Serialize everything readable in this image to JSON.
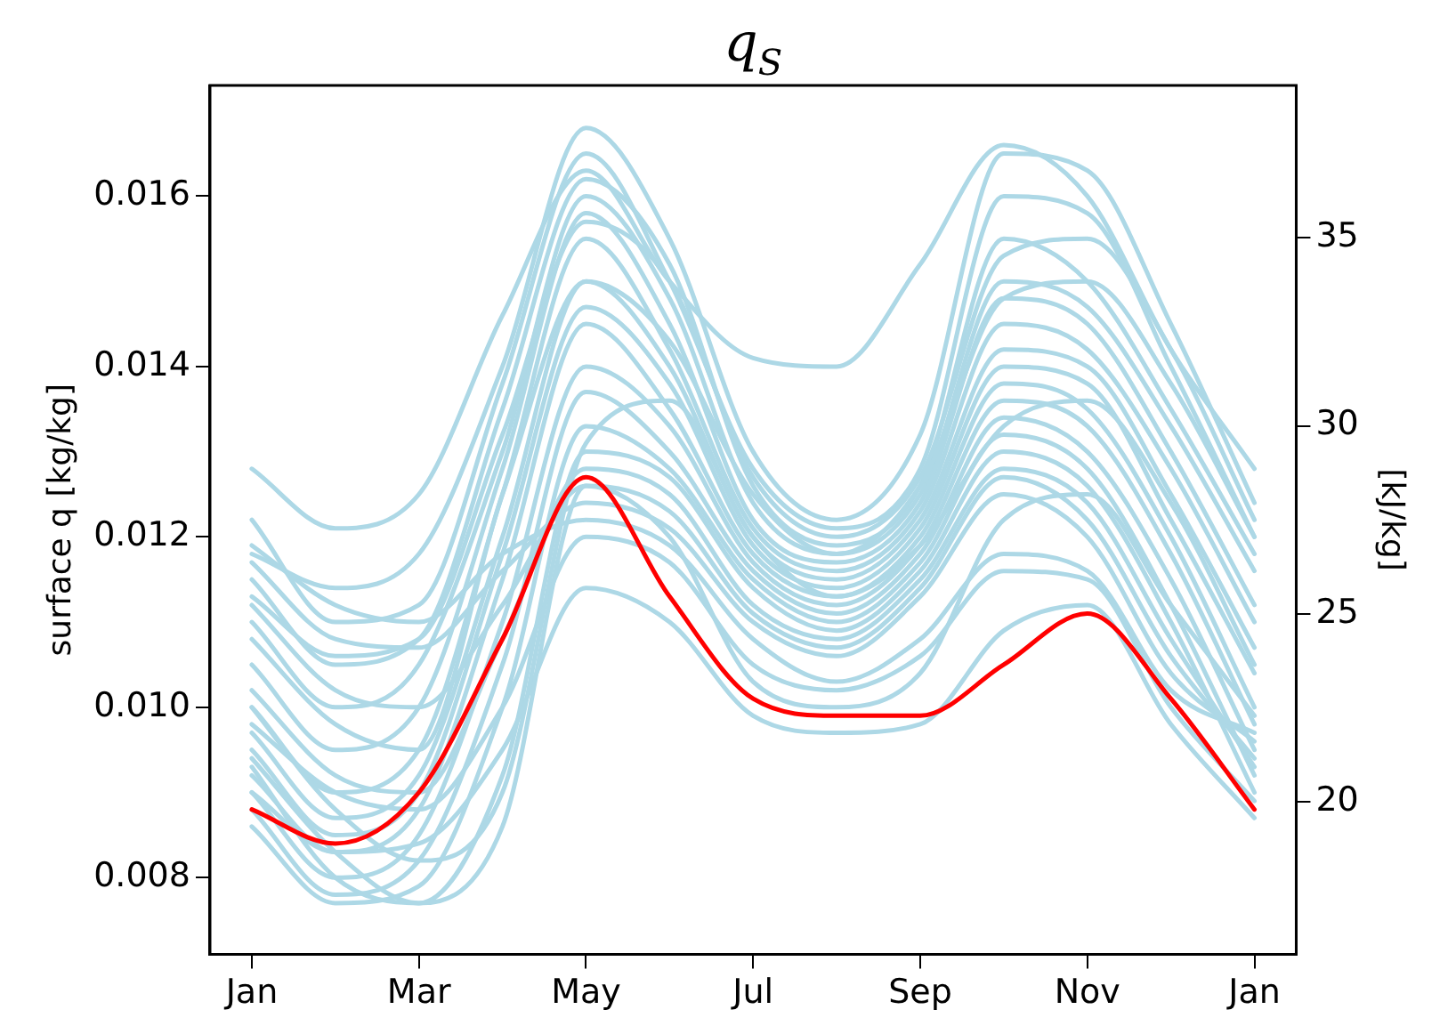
{
  "chart_data": {
    "type": "line",
    "title": "q$_{S}$",
    "ylabel": "surface q [kg/kg]",
    "y2label": "[kJ/kg]",
    "categories": [
      "Jan",
      null,
      "Mar",
      null,
      "May",
      null,
      "Jul",
      null,
      "Sep",
      null,
      "Nov",
      null,
      "Jan"
    ],
    "ylim": [
      0.0071,
      0.0173
    ],
    "yticks": [
      0.008,
      {
        "value": 0.01,
        "label": "0.010"
      },
      0.012,
      0.014,
      0.016
    ],
    "y2lim": [
      15.95,
      39.05
    ],
    "y2ticks": [
      20,
      25,
      30,
      35
    ],
    "grid": false,
    "legend": false,
    "marker": "none",
    "line_style": "solid",
    "series": [
      {
        "color": "#add8e6",
        "values": [
          0.0128,
          0.0121,
          0.0125,
          0.0146,
          0.0163,
          0.015,
          0.0141,
          0.014,
          0.0152,
          0.0166,
          0.016,
          0.0142,
          0.0128
        ]
      },
      {
        "color": "#add8e6",
        "values": [
          0.0118,
          0.0114,
          0.0118,
          0.014,
          0.0168,
          0.0155,
          0.013,
          0.0122,
          0.0132,
          0.0165,
          0.0163,
          0.0145,
          0.0124
        ]
      },
      {
        "color": "#add8e6",
        "values": [
          0.0122,
          0.011,
          0.0112,
          0.0138,
          0.0165,
          0.015,
          0.0128,
          0.0121,
          0.0128,
          0.016,
          0.0158,
          0.014,
          0.012
        ]
      },
      {
        "color": "#add8e6",
        "values": [
          0.0115,
          0.0105,
          0.0108,
          0.0135,
          0.0162,
          0.0152,
          0.0126,
          0.0119,
          0.0126,
          0.0155,
          0.015,
          0.0135,
          0.0118
        ]
      },
      {
        "color": "#add8e6",
        "values": [
          0.011,
          0.01,
          0.0105,
          0.013,
          0.016,
          0.0148,
          0.0124,
          0.0118,
          0.0125,
          0.015,
          0.0147,
          0.0133,
          0.0116
        ]
      },
      {
        "color": "#add8e6",
        "values": [
          0.0105,
          0.0095,
          0.01,
          0.0128,
          0.0158,
          0.0145,
          0.0122,
          0.0117,
          0.0124,
          0.0148,
          0.0145,
          0.013,
          0.0112
        ]
      },
      {
        "color": "#add8e6",
        "values": [
          0.01,
          0.009,
          0.0095,
          0.0125,
          0.0155,
          0.0142,
          0.0121,
          0.0116,
          0.0123,
          0.0145,
          0.0142,
          0.0128,
          0.011
        ]
      },
      {
        "color": "#add8e6",
        "values": [
          0.0097,
          0.0087,
          0.0092,
          0.012,
          0.015,
          0.014,
          0.012,
          0.0115,
          0.0122,
          0.0142,
          0.014,
          0.0125,
          0.0107
        ]
      },
      {
        "color": "#add8e6",
        "values": [
          0.0095,
          0.0085,
          0.009,
          0.0118,
          0.0147,
          0.0138,
          0.0119,
          0.0114,
          0.0121,
          0.014,
          0.0138,
          0.0122,
          0.0104
        ]
      },
      {
        "color": "#add8e6",
        "values": [
          0.0092,
          0.0083,
          0.0088,
          0.0115,
          0.0145,
          0.0135,
          0.0118,
          0.0113,
          0.012,
          0.0138,
          0.0135,
          0.012,
          0.01
        ]
      },
      {
        "color": "#add8e6",
        "values": [
          0.009,
          0.008,
          0.0085,
          0.011,
          0.014,
          0.0133,
          0.0117,
          0.0112,
          0.0119,
          0.0136,
          0.0133,
          0.0118,
          0.0098
        ]
      },
      {
        "color": "#add8e6",
        "values": [
          0.0088,
          0.0078,
          0.0082,
          0.0105,
          0.0137,
          0.013,
          0.0116,
          0.0111,
          0.0118,
          0.0134,
          0.013,
          0.0115,
          0.0095
        ]
      },
      {
        "color": "#add8e6",
        "values": [
          0.0086,
          0.0077,
          0.0079,
          0.01,
          0.0133,
          0.0128,
          0.0115,
          0.011,
          0.0117,
          0.0132,
          0.0128,
          0.0112,
          0.0092
        ]
      },
      {
        "color": "#add8e6",
        "values": [
          0.0093,
          0.008,
          0.0077,
          0.0092,
          0.013,
          0.0127,
          0.0114,
          0.0109,
          0.0116,
          0.013,
          0.0126,
          0.011,
          0.009
        ]
      },
      {
        "color": "#add8e6",
        "values": [
          0.0102,
          0.0092,
          0.009,
          0.0108,
          0.0128,
          0.0125,
          0.0112,
          0.0108,
          0.0115,
          0.0128,
          0.0124,
          0.0108,
          0.0093
        ]
      },
      {
        "color": "#add8e6",
        "values": [
          0.0112,
          0.0102,
          0.01,
          0.0112,
          0.0126,
          0.0123,
          0.0111,
          0.0107,
          0.0114,
          0.0127,
          0.0122,
          0.0106,
          0.0094
        ]
      },
      {
        "color": "#add8e6",
        "values": [
          0.0117,
          0.0108,
          0.0107,
          0.0116,
          0.0124,
          0.0121,
          0.011,
          0.0106,
          0.0113,
          0.0125,
          0.012,
          0.0104,
          0.0096
        ]
      },
      {
        "color": "#add8e6",
        "values": [
          0.0119,
          0.0112,
          0.011,
          0.0118,
          0.0122,
          0.0119,
          0.0108,
          0.0103,
          0.0108,
          0.0118,
          0.0116,
          0.0102,
          0.0097
        ]
      },
      {
        "color": "#add8e6",
        "values": [
          0.0098,
          0.009,
          0.0088,
          0.01,
          0.012,
          0.0117,
          0.0105,
          0.0102,
          0.0106,
          0.0116,
          0.0115,
          0.01,
          0.0089
        ]
      },
      {
        "color": "#add8e6",
        "values": [
          0.009,
          0.0083,
          0.0084,
          0.0095,
          0.0114,
          0.011,
          0.0099,
          0.0097,
          0.0098,
          0.0109,
          0.0112,
          0.0098,
          0.0087
        ]
      },
      {
        "color": "#add8e6",
        "values": [
          0.0094,
          0.0083,
          0.0077,
          0.0086,
          0.0126,
          0.012,
          0.0103,
          0.01,
          0.0104,
          0.0122,
          0.0125,
          0.0112,
          0.0099
        ]
      },
      {
        "color": "#add8e6",
        "values": [
          0.01,
          0.0088,
          0.0082,
          0.009,
          0.0131,
          0.0136,
          0.012,
          0.0113,
          0.0119,
          0.0133,
          0.0136,
          0.0124,
          0.0105
        ]
      },
      {
        "color": "#add8e6",
        "values": [
          0.0108,
          0.0098,
          0.0095,
          0.0125,
          0.015,
          0.0143,
          0.0125,
          0.0118,
          0.0126,
          0.0148,
          0.015,
          0.0138,
          0.012
        ]
      },
      {
        "color": "#add8e6",
        "values": [
          0.0113,
          0.0106,
          0.0108,
          0.0132,
          0.0157,
          0.015,
          0.0127,
          0.012,
          0.0127,
          0.0153,
          0.0155,
          0.0142,
          0.0122
        ]
      },
      {
        "color": "#ff0000",
        "values": [
          0.0088,
          0.0084,
          0.009,
          0.0108,
          0.0127,
          0.0113,
          0.0101,
          0.0099,
          0.0099,
          0.0105,
          0.0111,
          0.0101,
          0.0088
        ]
      }
    ]
  }
}
